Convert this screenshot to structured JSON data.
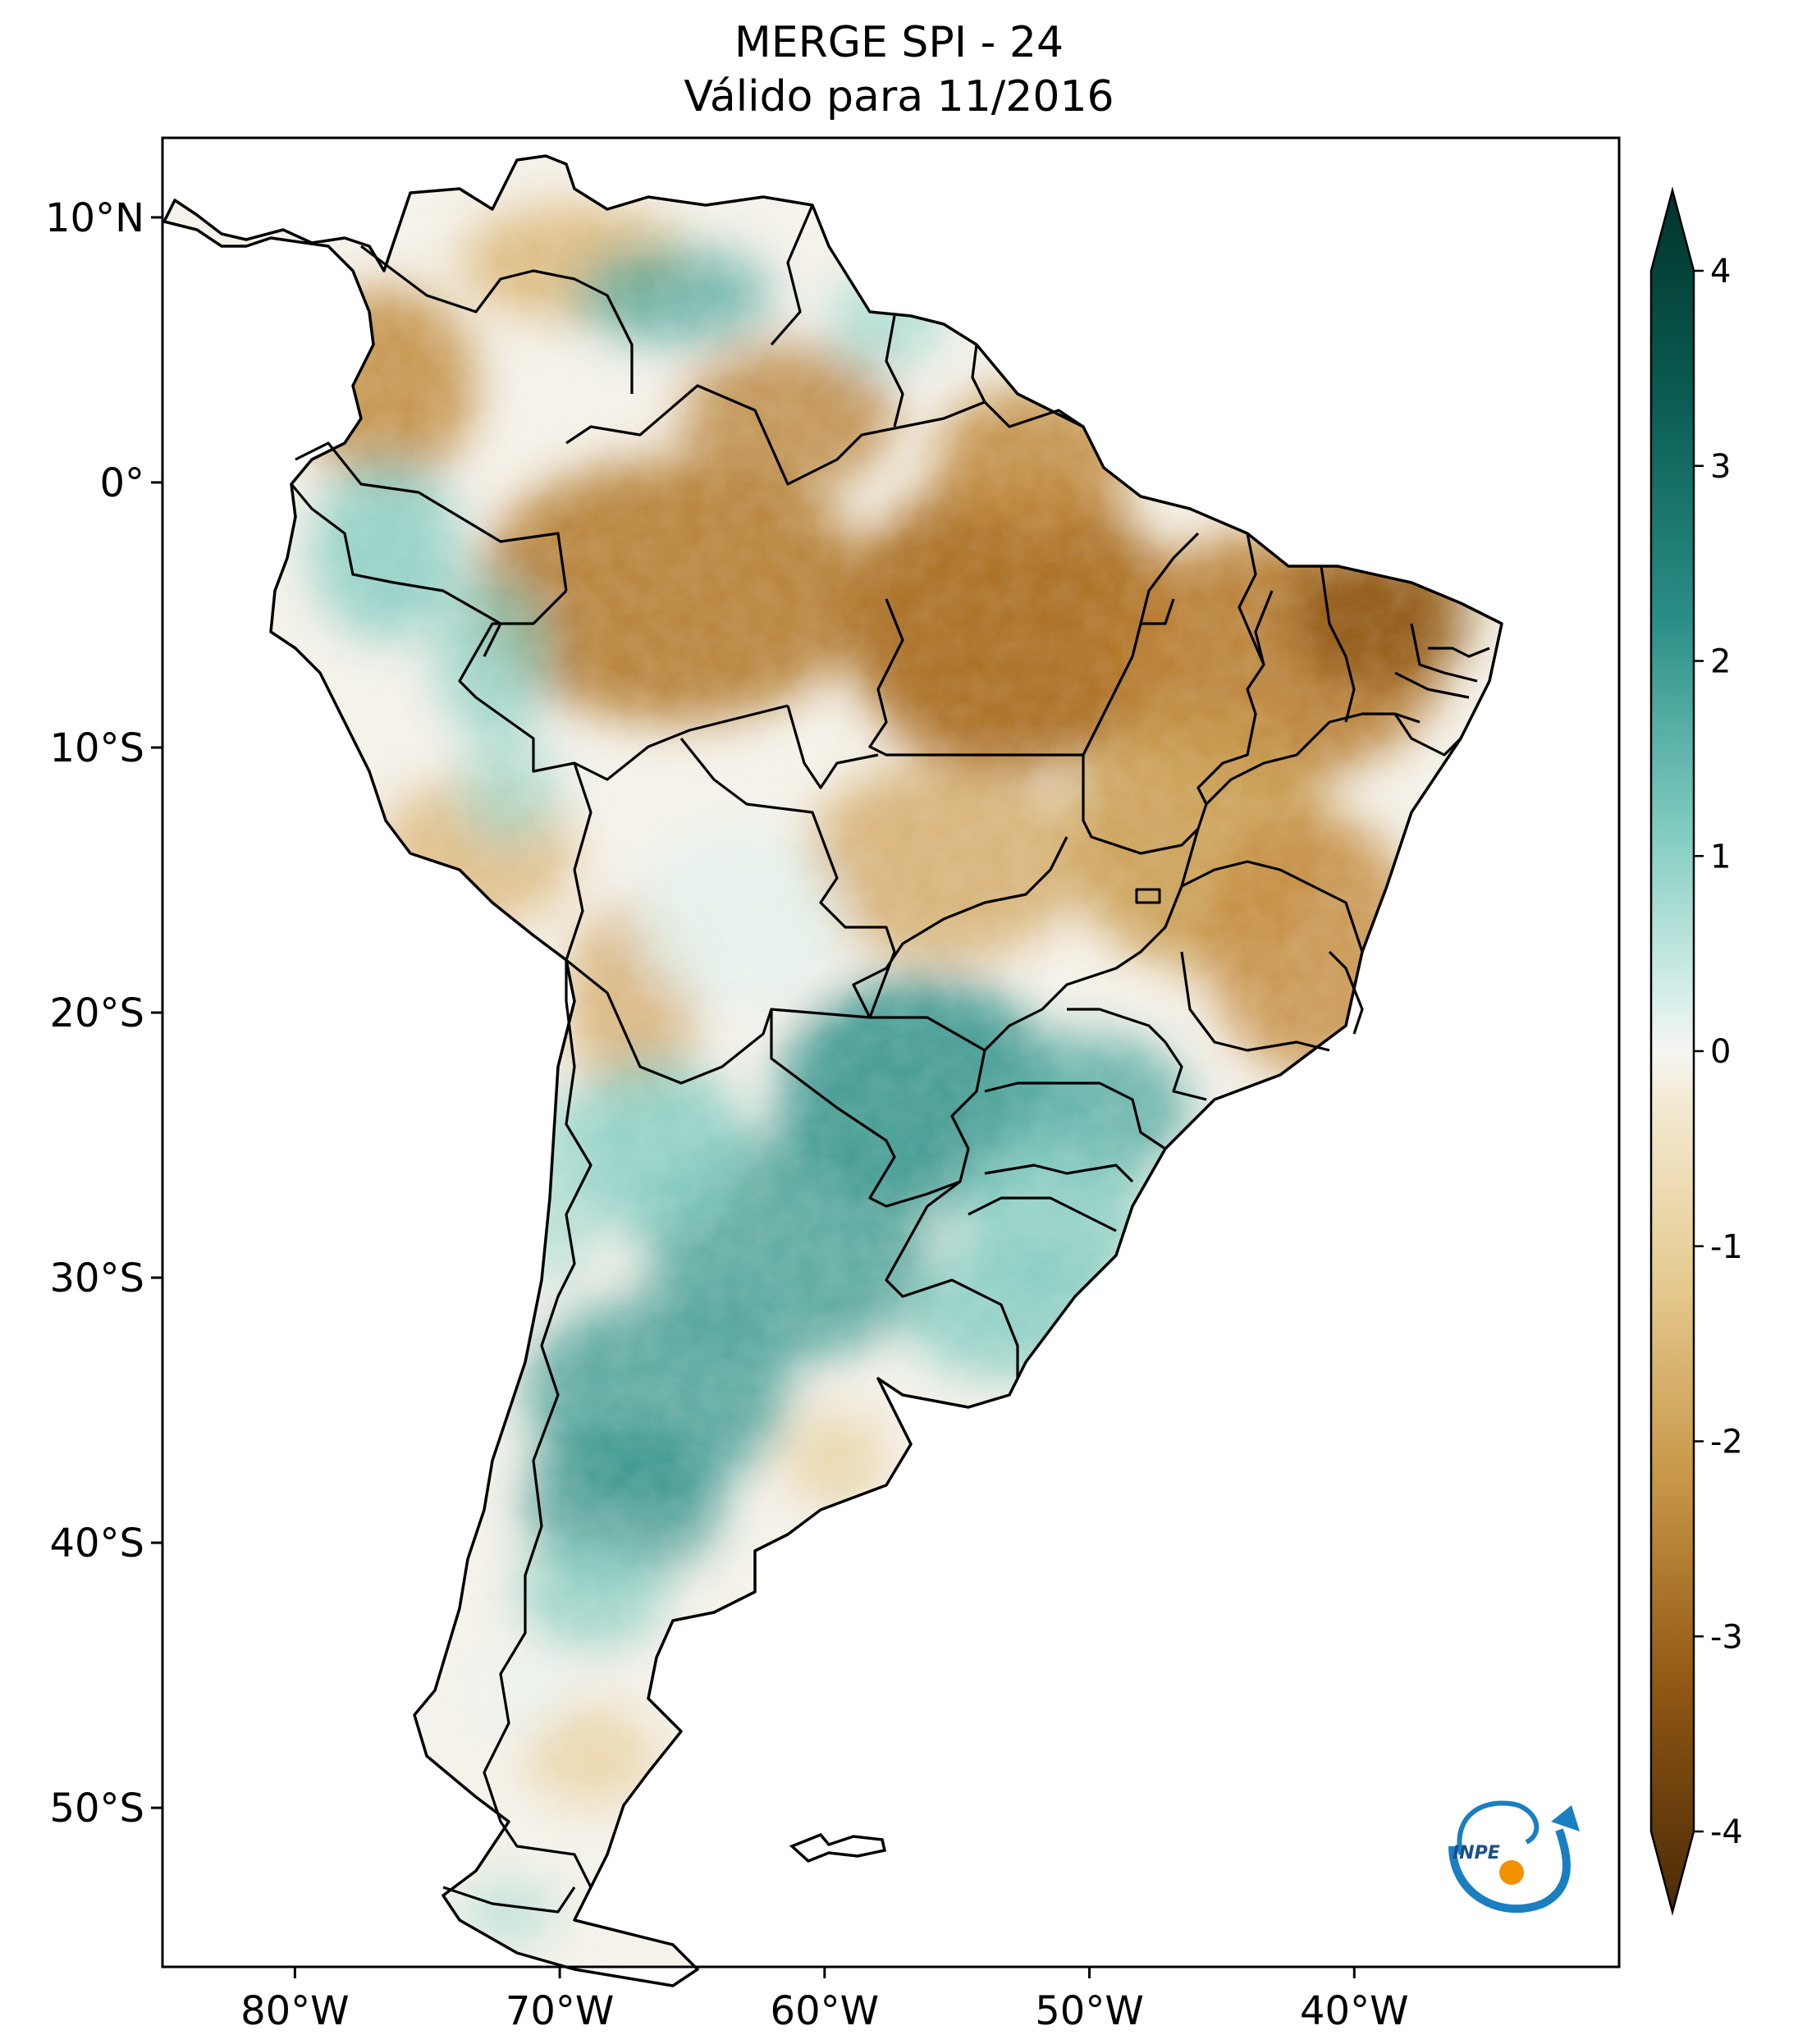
{
  "title": {
    "line1": "MERGE   SPI - 24",
    "line2": "Válido para 11/2016"
  },
  "map": {
    "lon_range": [
      -85,
      -30
    ],
    "lat_range": [
      -56,
      13
    ],
    "lon_ticks": [
      {
        "value": -80,
        "label": "80°W"
      },
      {
        "value": -70,
        "label": "70°W"
      },
      {
        "value": -60,
        "label": "60°W"
      },
      {
        "value": -50,
        "label": "50°W"
      },
      {
        "value": -40,
        "label": "40°W"
      }
    ],
    "lat_ticks": [
      {
        "value": 10,
        "label": "10°N"
      },
      {
        "value": 0,
        "label": "0°"
      },
      {
        "value": -10,
        "label": "10°S"
      },
      {
        "value": -20,
        "label": "20°S"
      },
      {
        "value": -30,
        "label": "30°S"
      },
      {
        "value": -40,
        "label": "40°S"
      },
      {
        "value": -50,
        "label": "50°S"
      }
    ]
  },
  "colorbar": {
    "colormap": "BrBG",
    "range": [
      -4,
      4
    ],
    "extend": "both",
    "ticks": [
      {
        "value": 4,
        "label": "4"
      },
      {
        "value": 3,
        "label": "3"
      },
      {
        "value": 2,
        "label": "2"
      },
      {
        "value": 1,
        "label": "1"
      },
      {
        "value": 0,
        "label": "0"
      },
      {
        "value": -1,
        "label": "-1"
      },
      {
        "value": -2,
        "label": "-2"
      },
      {
        "value": -3,
        "label": "-3"
      },
      {
        "value": -4,
        "label": "-4"
      }
    ],
    "colors": {
      "top": "#01332a",
      "high": "#2b8f87",
      "mid_high": "#9fd8cf",
      "zero": "#f6f5f2",
      "mid_low": "#e6cc93",
      "low": "#b0742a",
      "bottom": "#4a2a06"
    }
  },
  "logo": {
    "text": "INPE",
    "colors": {
      "arc": "#1a7fc0",
      "dot": "#f39200"
    }
  },
  "regions": [
    {
      "name": "amazon-drought",
      "spi": -2.0
    },
    {
      "name": "northeast-brazil",
      "spi": -1.8
    },
    {
      "name": "guiana-shield",
      "spi": -1.5
    },
    {
      "name": "venezuela-orinoco",
      "spi": 1.5
    },
    {
      "name": "ecuador-peru-andes",
      "spi": 1.6
    },
    {
      "name": "central-peru",
      "spi": -1.2
    },
    {
      "name": "bolivia-lowlands",
      "spi": 0.5
    },
    {
      "name": "paraguay-south-brazil",
      "spi": 2.2
    },
    {
      "name": "argentina-pampas",
      "spi": 2.3
    },
    {
      "name": "central-argentina",
      "spi": 1.8
    },
    {
      "name": "patagonia",
      "spi": 0.4
    },
    {
      "name": "uruguay",
      "spi": 1.4
    }
  ]
}
